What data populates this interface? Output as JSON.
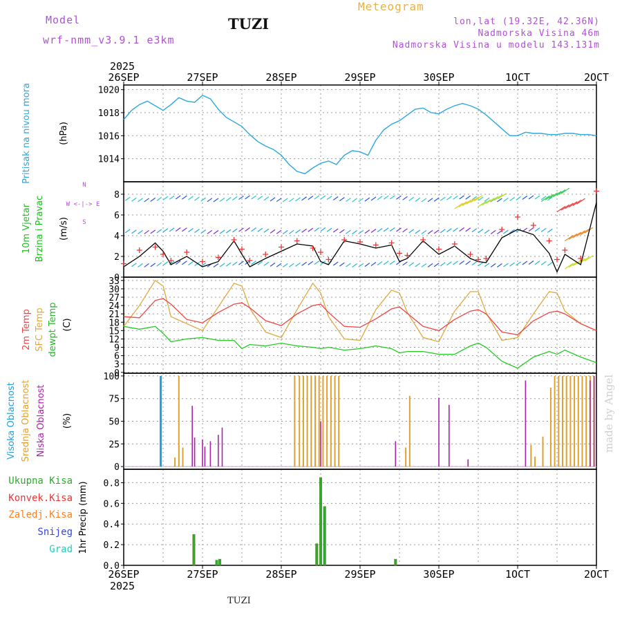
{
  "header": {
    "model_label": "Model",
    "model_name": "wrf-nmm_v3.9.1 e3km",
    "station": "TUZI",
    "title": "Meteogram",
    "lonlat": "lon,lat (19.32E, 42.36N)",
    "elevation": "Nadmorska Visina 46m",
    "model_elevation": "Nadmorska Visina u modelu 143.131m",
    "footer_station": "TUZI",
    "credit": "made by Angel"
  },
  "colors": {
    "pressure": "#2aa8e0",
    "speed": "#000000",
    "gust": "#ee3333",
    "t2m": "#ee4444",
    "sfc": "#e0a840",
    "dewpt": "#22cc22",
    "high_cloud": "#1aa0e8",
    "mid_cloud": "#e0a030",
    "low_cloud": "#aa22aa",
    "total_precip": "#2eaa2e",
    "conv": "#ee3333",
    "frz": "#ff8020",
    "snow": "#3344ee",
    "grad": "#22ccbb",
    "label_purple": "#b04fd8",
    "label_gold": "#e8b040"
  },
  "chart_data": [
    {
      "type": "line",
      "panel": "pressure",
      "title": "Pritisak na nivou mora",
      "ylabel": "(hPa)",
      "ylim": [
        1012.0,
        1020.4
      ],
      "yticks": [
        1014,
        1016,
        1018,
        1020
      ],
      "x_days": [
        0.0,
        0.1,
        0.2,
        0.3,
        0.4,
        0.5,
        0.6,
        0.7,
        0.8,
        0.9,
        1.0,
        1.1,
        1.2,
        1.3,
        1.4,
        1.5,
        1.6,
        1.7,
        1.8,
        1.9,
        2.0,
        2.1,
        2.2,
        2.3,
        2.4,
        2.5,
        2.6,
        2.7,
        2.8,
        2.9,
        3.0,
        3.1,
        3.2,
        3.3,
        3.4,
        3.5,
        3.6,
        3.7,
        3.8,
        3.9,
        4.0,
        4.1,
        4.2,
        4.3,
        4.4,
        4.5,
        4.6,
        4.7,
        4.8,
        4.9,
        5.0,
        5.1,
        5.2,
        5.3,
        5.4,
        5.5,
        5.6,
        5.7,
        5.8,
        5.9,
        6.0
      ],
      "values": [
        1017.4,
        1018.2,
        1018.7,
        1019.0,
        1018.6,
        1018.2,
        1018.7,
        1019.3,
        1019.0,
        1018.9,
        1019.5,
        1019.2,
        1018.3,
        1017.6,
        1017.2,
        1016.8,
        1016.1,
        1015.5,
        1015.1,
        1014.8,
        1014.3,
        1013.5,
        1012.9,
        1012.7,
        1013.2,
        1013.6,
        1013.8,
        1013.5,
        1014.3,
        1014.7,
        1014.6,
        1014.3,
        1015.6,
        1016.5,
        1017.0,
        1017.3,
        1017.8,
        1018.3,
        1018.4,
        1018.0,
        1017.9,
        1018.3,
        1018.6,
        1018.8,
        1018.6,
        1018.3,
        1017.8,
        1017.2,
        1016.6,
        1016.0,
        1016.0,
        1016.3,
        1016.2,
        1016.2,
        1016.1,
        1016.1,
        1016.2,
        1016.2,
        1016.1,
        1016.1,
        1016.0
      ]
    },
    {
      "type": "line",
      "panel": "wind",
      "title": "10m Vjetar Brzina i Pravac",
      "ylabel": "(m/s)",
      "compass": "W <-|-> E",
      "compass_n": "N",
      "compass_s": "S",
      "ylim": [
        0,
        9.2
      ],
      "yticks": [
        0,
        2,
        4,
        6,
        8
      ],
      "x_days": [
        0.0,
        0.2,
        0.4,
        0.5,
        0.6,
        0.8,
        1.0,
        1.2,
        1.4,
        1.5,
        1.6,
        1.8,
        2.0,
        2.2,
        2.4,
        2.5,
        2.6,
        2.8,
        3.0,
        3.2,
        3.4,
        3.5,
        3.6,
        3.8,
        4.0,
        4.2,
        4.4,
        4.5,
        4.6,
        4.8,
        5.0,
        5.2,
        5.4,
        5.5,
        5.6,
        5.8,
        6.0
      ],
      "speed": [
        1.0,
        2.0,
        3.3,
        2.5,
        1.2,
        2.0,
        1.0,
        1.5,
        3.5,
        2.2,
        1.0,
        1.8,
        2.5,
        3.2,
        3.0,
        1.5,
        1.2,
        3.5,
        3.2,
        2.8,
        3.1,
        1.5,
        1.8,
        3.5,
        2.2,
        3.0,
        1.8,
        1.5,
        1.4,
        3.8,
        4.6,
        4.1,
        2.3,
        0.5,
        2.2,
        1.2,
        7.2
      ],
      "gust": [
        1.3,
        2.6,
        2.9,
        2.2,
        1.6,
        2.4,
        1.5,
        1.9,
        3.6,
        2.7,
        1.6,
        2.2,
        2.9,
        3.5,
        2.8,
        2.4,
        1.7,
        3.6,
        3.4,
        3.1,
        3.3,
        2.3,
        2.1,
        3.6,
        2.7,
        3.2,
        2.2,
        1.7,
        1.8,
        4.6,
        5.8,
        5.0,
        3.5,
        1.7,
        2.6,
        1.8,
        8.3
      ]
    },
    {
      "type": "line",
      "panel": "temperature",
      "labels": [
        "2m Temp",
        "SFC Temp",
        "dewpt Temp"
      ],
      "ylabel": "(C)",
      "ylim": [
        -0.3,
        34.2
      ],
      "yticks": [
        0,
        3,
        6,
        9,
        12,
        15,
        18,
        21,
        24,
        27,
        30,
        33
      ],
      "x_days": [
        0.0,
        0.2,
        0.4,
        0.5,
        0.6,
        0.8,
        1.0,
        1.2,
        1.4,
        1.5,
        1.6,
        1.8,
        2.0,
        2.2,
        2.4,
        2.5,
        2.6,
        2.8,
        3.0,
        3.2,
        3.4,
        3.5,
        3.6,
        3.8,
        4.0,
        4.2,
        4.4,
        4.5,
        4.6,
        4.8,
        5.0,
        5.2,
        5.4,
        5.5,
        5.6,
        5.8,
        6.0
      ],
      "t2m": [
        20.0,
        19.6,
        25.8,
        26.5,
        24.5,
        19.0,
        17.8,
        21.5,
        24.5,
        25.0,
        23.2,
        18.6,
        16.8,
        21.0,
        24.0,
        24.5,
        21.5,
        16.5,
        16.2,
        19.2,
        22.8,
        23.5,
        21.2,
        16.5,
        15.0,
        19.0,
        22.0,
        22.5,
        21.0,
        14.5,
        13.5,
        18.5,
        21.5,
        22.0,
        21.0,
        17.5,
        15.0
      ],
      "sfc": [
        16.5,
        24.0,
        33.0,
        31.0,
        20.0,
        17.5,
        15.0,
        23.5,
        32.0,
        31.0,
        23.0,
        14.5,
        12.5,
        22.5,
        32.0,
        28.5,
        20.0,
        12.0,
        11.5,
        22.5,
        29.5,
        28.5,
        21.5,
        12.5,
        11.0,
        22.0,
        29.0,
        29.0,
        21.5,
        11.5,
        12.5,
        21.0,
        29.0,
        28.5,
        22.0,
        17.5,
        15.0
      ],
      "dewpt": [
        16.5,
        15.5,
        16.5,
        14.0,
        11.0,
        12.0,
        12.5,
        11.5,
        11.5,
        8.5,
        10.0,
        9.5,
        10.5,
        9.5,
        9.0,
        8.5,
        9.0,
        8.0,
        8.5,
        9.5,
        8.5,
        7.0,
        7.5,
        7.5,
        6.5,
        6.5,
        9.5,
        10.5,
        9.0,
        4.0,
        1.5,
        5.5,
        7.5,
        6.5,
        8.0,
        5.5,
        3.5
      ]
    },
    {
      "type": "bar",
      "panel": "cloud",
      "labels": [
        "Visoka Oblacnost",
        "Srednja Oblacnost",
        "Niska Oblacnost"
      ],
      "ylabel": "(%)",
      "ylim": [
        -3,
        103
      ],
      "yticks": [
        0,
        25,
        50,
        75,
        100
      ],
      "high": [
        [
          0.47,
          100
        ]
      ],
      "mid": [
        [
          0.7,
          100
        ],
        [
          0.75,
          21
        ],
        [
          0.65,
          10
        ],
        [
          2.17,
          100
        ],
        [
          2.23,
          100
        ],
        [
          2.28,
          100
        ],
        [
          2.33,
          100
        ],
        [
          2.38,
          100
        ],
        [
          2.43,
          100
        ],
        [
          2.48,
          100
        ],
        [
          2.53,
          100
        ],
        [
          2.58,
          100
        ],
        [
          2.63,
          100
        ],
        [
          2.68,
          100
        ],
        [
          2.73,
          100
        ],
        [
          3.58,
          21
        ],
        [
          3.63,
          78
        ],
        [
          5.17,
          24
        ],
        [
          5.22,
          11
        ],
        [
          5.32,
          33
        ],
        [
          5.42,
          87
        ],
        [
          5.47,
          100
        ],
        [
          5.52,
          100
        ],
        [
          5.57,
          100
        ],
        [
          5.62,
          100
        ],
        [
          5.67,
          100
        ],
        [
          5.72,
          100
        ],
        [
          5.77,
          100
        ],
        [
          5.82,
          100
        ],
        [
          5.87,
          100
        ],
        [
          5.92,
          100
        ],
        [
          5.97,
          100
        ]
      ],
      "low": [
        [
          0.87,
          67
        ],
        [
          0.9,
          32
        ],
        [
          1.0,
          30
        ],
        [
          1.03,
          22
        ],
        [
          1.1,
          28
        ],
        [
          1.2,
          35
        ],
        [
          1.25,
          43
        ],
        [
          2.5,
          50
        ],
        [
          3.45,
          28
        ],
        [
          4.0,
          76
        ],
        [
          4.13,
          68
        ],
        [
          4.37,
          8
        ],
        [
          5.1,
          95
        ],
        [
          5.92,
          95
        ],
        [
          5.97,
          100
        ]
      ]
    },
    {
      "type": "bar",
      "panel": "precip",
      "labels": [
        "Ukupna Kisa",
        "Konvek.Kisa",
        "Zaledj.Kisa",
        "Snijeg",
        "Grad"
      ],
      "ylabel": "1hr Precip (mm)",
      "ylim": [
        0,
        0.93
      ],
      "yticks": [
        0.0,
        0.2,
        0.4,
        0.6,
        0.8
      ],
      "total": [
        [
          0.89,
          0.3
        ],
        [
          1.18,
          0.05
        ],
        [
          1.22,
          0.06
        ],
        [
          2.45,
          0.21
        ],
        [
          2.5,
          0.85
        ],
        [
          2.55,
          0.57
        ],
        [
          3.45,
          0.06
        ]
      ]
    }
  ],
  "time_axis": {
    "year_label": "2025",
    "days": [
      "26SEP",
      "27SEP",
      "28SEP",
      "29SEP",
      "30SEP",
      "1OCT",
      "2OCT"
    ]
  }
}
